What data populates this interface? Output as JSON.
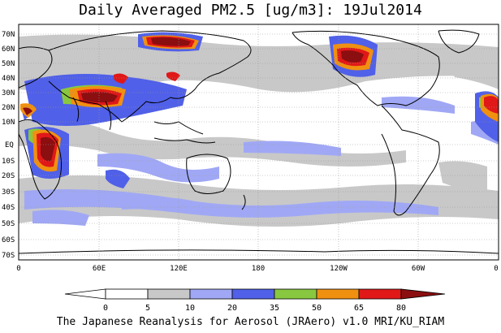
{
  "title": "Daily Averaged PM2.5 [ug/m3]: 19Jul2014",
  "footer": "The Japanese Reanalysis for Aerosol (JRAero) v1.0 MRI/KU_RIAM",
  "lat_labels": [
    "70N",
    "60N",
    "50N",
    "40N",
    "30N",
    "20N",
    "10N",
    "EQ",
    "10S",
    "20S",
    "30S",
    "40S",
    "50S",
    "60S",
    "70S"
  ],
  "lon_labels": [
    "0",
    "60E",
    "120E",
    "180",
    "120W",
    "60W",
    "0"
  ],
  "colorbar": {
    "ticks": [
      "0",
      "5",
      "10",
      "20",
      "35",
      "50",
      "65",
      "80"
    ],
    "colors": [
      "#ffffff",
      "#ffffff",
      "#c8c8c8",
      "#a0a8f5",
      "#5060e8",
      "#88c840",
      "#f09010",
      "#e01818",
      "#8b0e10"
    ]
  },
  "colors": {
    "ocean": "#ffffff",
    "grid": "#999999",
    "coast": "#000000"
  }
}
